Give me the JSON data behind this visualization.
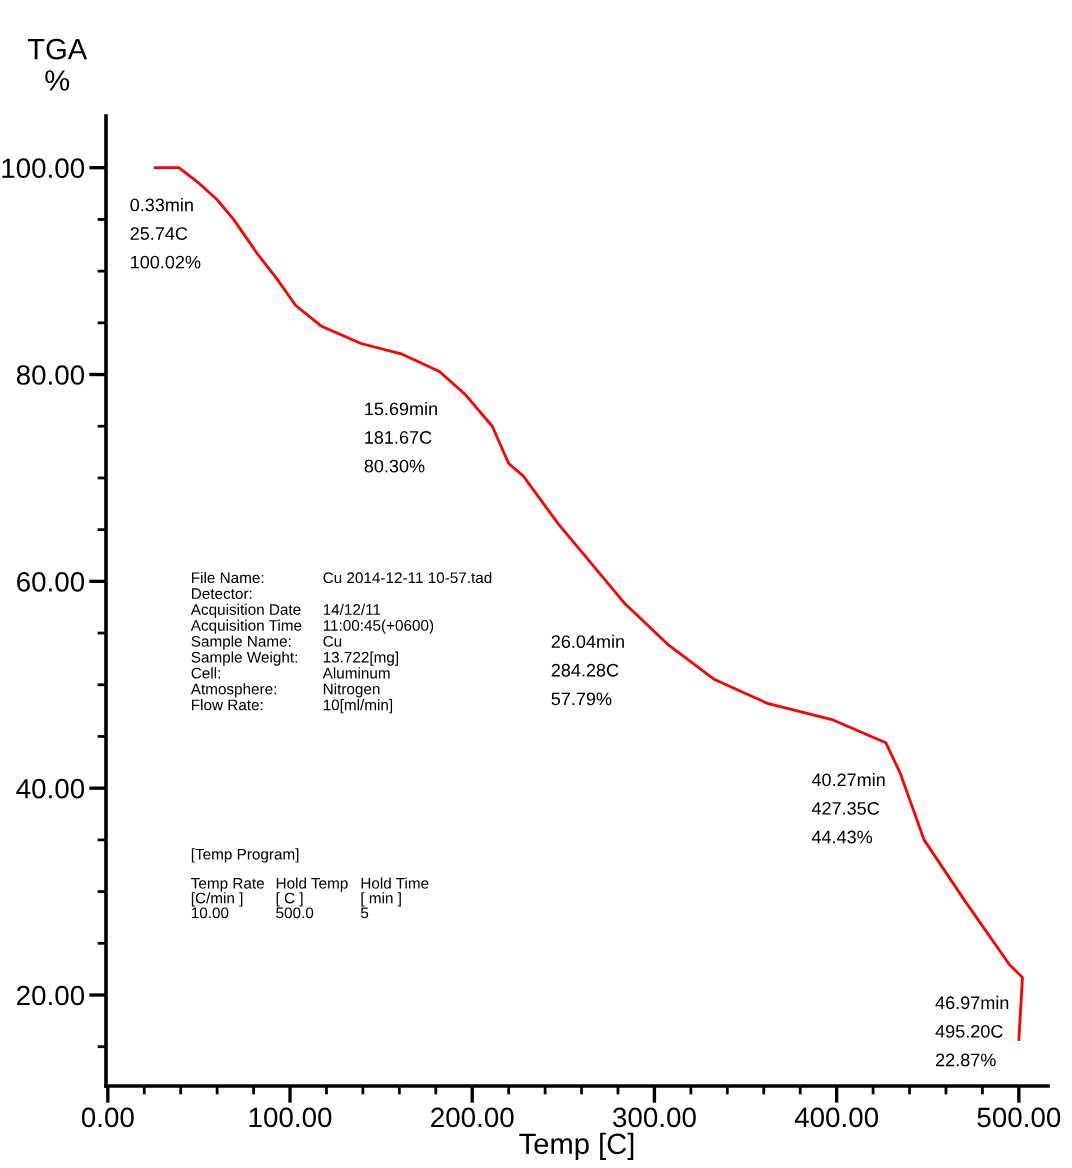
{
  "chart_data": {
    "type": "line",
    "xlabel": "Temp [C]",
    "ylabel": "TGA\n%",
    "x": [
      26,
      39,
      50,
      60,
      69,
      82,
      93,
      103,
      117,
      139,
      161,
      182,
      196,
      211,
      220,
      228,
      247,
      284,
      308,
      333,
      362,
      398,
      427,
      435,
      448,
      470,
      495,
      502,
      500
    ],
    "series": [
      {
        "color": "#ff0000",
        "values": [
          100.0,
          100.0,
          98.5,
          96.9,
          95,
          91.7,
          89.2,
          86.7,
          84.7,
          83,
          82,
          80.3,
          78.1,
          75,
          71.4,
          70.2,
          65.6,
          57.8,
          53.8,
          50.5,
          48.2,
          46.6,
          44.4,
          41.4,
          35,
          29.2,
          22.9,
          21.7,
          15.7
        ]
      }
    ],
    "xlim": [
      -1,
      516
    ],
    "ylim": [
      11.2,
      105
    ],
    "xticks": [
      {
        "value": 0,
        "label": "0.00"
      },
      {
        "value": 20,
        "label": null
      },
      {
        "value": 40,
        "label": null
      },
      {
        "value": 60,
        "label": null
      },
      {
        "value": 80,
        "label": null
      },
      {
        "value": 100,
        "label": "100.00"
      },
      {
        "value": 120,
        "label": null
      },
      {
        "value": 140,
        "label": null
      },
      {
        "value": 160,
        "label": null
      },
      {
        "value": 180,
        "label": null
      },
      {
        "value": 200,
        "label": "200.00"
      },
      {
        "value": 220,
        "label": null
      },
      {
        "value": 240,
        "label": null
      },
      {
        "value": 260,
        "label": null
      },
      {
        "value": 280,
        "label": null
      },
      {
        "value": 300,
        "label": "300.00"
      },
      {
        "value": 320,
        "label": null
      },
      {
        "value": 340,
        "label": null
      },
      {
        "value": 360,
        "label": null
      },
      {
        "value": 380,
        "label": null
      },
      {
        "value": 400,
        "label": "400.00"
      },
      {
        "value": 420,
        "label": null
      },
      {
        "value": 440,
        "label": null
      },
      {
        "value": 460,
        "label": null
      },
      {
        "value": 480,
        "label": null
      },
      {
        "value": 500,
        "label": "500.00"
      }
    ],
    "yticks": [
      {
        "value": 15,
        "label": null
      },
      {
        "value": 20,
        "label": "20.00"
      },
      {
        "value": 25,
        "label": null
      },
      {
        "value": 30,
        "label": null
      },
      {
        "value": 35,
        "label": null
      },
      {
        "value": 40,
        "label": "40.00"
      },
      {
        "value": 45,
        "label": null
      },
      {
        "value": 50,
        "label": null
      },
      {
        "value": 55,
        "label": null
      },
      {
        "value": 60,
        "label": "60.00"
      },
      {
        "value": 65,
        "label": null
      },
      {
        "value": 70,
        "label": null
      },
      {
        "value": 75,
        "label": null
      },
      {
        "value": 80,
        "label": "80.00"
      },
      {
        "value": 85,
        "label": null
      },
      {
        "value": 90,
        "label": null
      },
      {
        "value": 95,
        "label": null
      },
      {
        "value": 100,
        "label": "100.00"
      }
    ],
    "grid": false,
    "legend": false,
    "marker": "none",
    "line_style": "solid",
    "annotations": [
      {
        "text": "0.33min\n25.74C\n100.02%",
        "x": 25.74,
        "y": 100.02
      },
      {
        "text": "15.69min\n181.67C\n80.30%",
        "x": 181.67,
        "y": 80.3
      },
      {
        "text": "26.04min\n284.28C\n57.79%",
        "x": 284.28,
        "y": 57.79
      },
      {
        "text": "40.27min\n427.35C\n44.43%",
        "x": 427.35,
        "y": 44.43
      },
      {
        "text": "46.97min\n495.20C\n22.87%",
        "x": 495.2,
        "y": 22.87
      },
      "File Name:\nDetector:\nAcquisition Date\nAcquisition Time\nSample Name:\nSample Weight:\nCell:\nAtmosphere:\nFlow Rate:",
      "Cu 2014-12-11 10-57.tad\n\n14/12/11\n11:00:45(+0600)\nCu\n13.722[mg]\nAluminum\nNitrogen\n10[ml/min]",
      "[Temp Program]",
      "Temp Rate\n[C/min ]\n10.00",
      "Hold Temp\n[ C ]\n500.0",
      "Hold Time\n[ min ]\n5"
    ]
  }
}
